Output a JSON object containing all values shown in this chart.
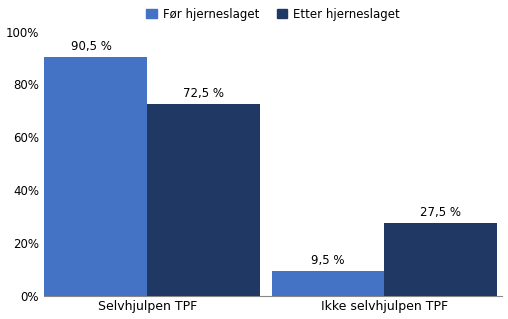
{
  "categories": [
    "Selvhjulpen TPF",
    "Ikke selvhjulpen TPF"
  ],
  "series": [
    {
      "name": "Før hjerneslaget",
      "values": [
        90.5,
        9.5
      ],
      "color": "#4472C4"
    },
    {
      "name": "Etter hjerneslaget",
      "values": [
        72.5,
        27.5
      ],
      "color": "#1F3864"
    }
  ],
  "labels": [
    "90,5 %",
    "72,5 %",
    "9,5 %",
    "27,5 %"
  ],
  "ylim": [
    0,
    100
  ],
  "yticks": [
    0,
    20,
    40,
    60,
    80,
    100
  ],
  "ytick_labels": [
    "0%",
    "20%",
    "40%",
    "60%",
    "80%",
    "100%"
  ],
  "bar_width": 0.38,
  "x_positions": [
    0.3,
    1.1
  ],
  "background_color": "#FFFFFF",
  "legend_fontsize": 8.5,
  "tick_fontsize": 8.5,
  "label_fontsize": 8.5,
  "category_fontsize": 9
}
